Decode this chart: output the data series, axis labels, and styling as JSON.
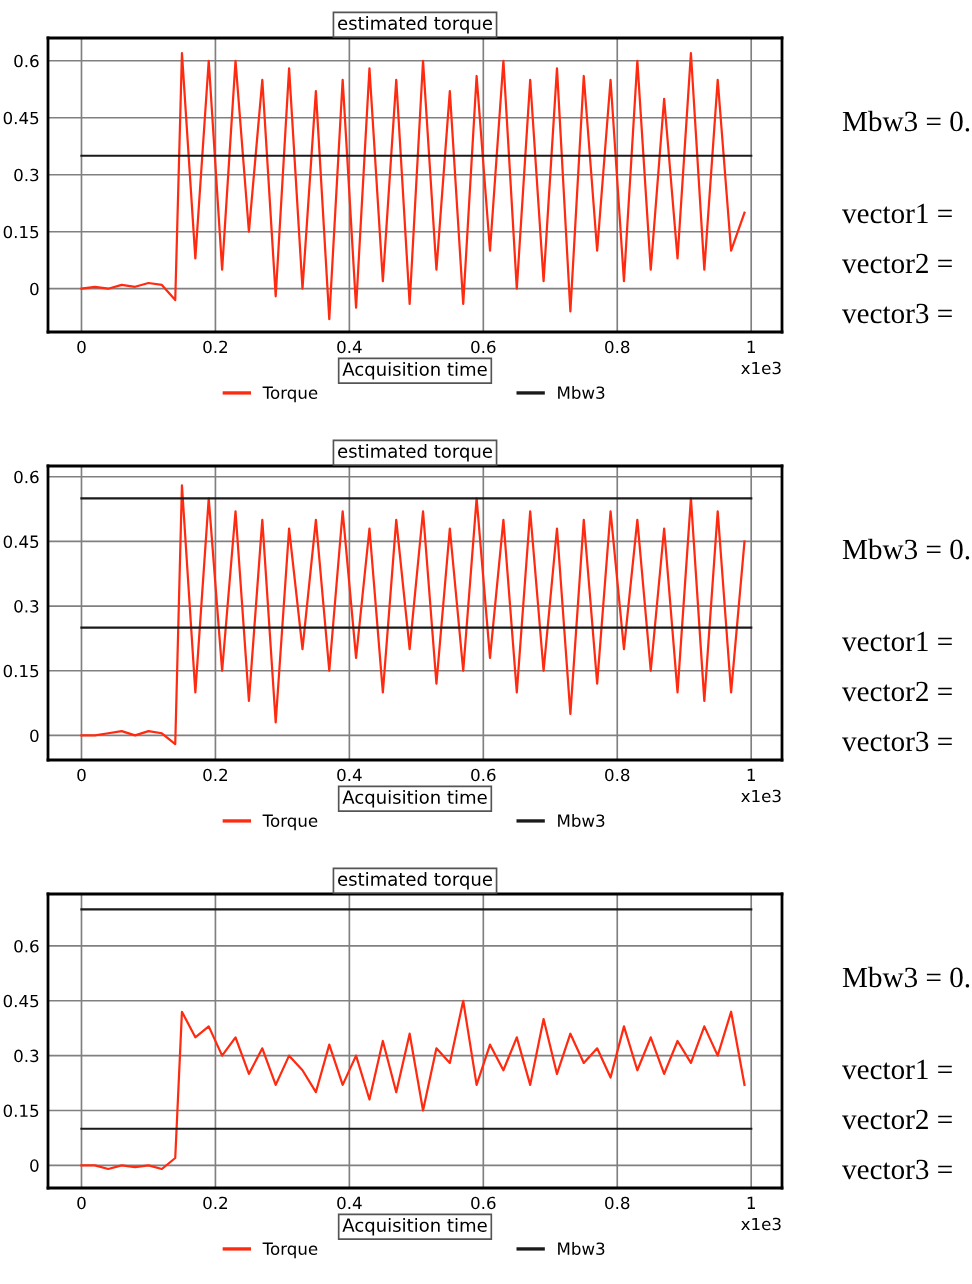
{
  "chart_data": [
    {
      "type": "line",
      "title": "estimated torque",
      "xlabel": "Acquisition time",
      "annotations": [
        "x1e3",
        "Mbw3 = 0.",
        "vector1 =",
        "vector2 =",
        "vector3 ="
      ],
      "xlim": [
        -0.05,
        1.046
      ],
      "ylim": [
        -0.114,
        0.66
      ],
      "xticks": [
        0,
        0.2,
        0.4,
        0.6,
        0.8,
        1
      ],
      "yticks": [
        0,
        0.15,
        0.3,
        0.45,
        0.6
      ],
      "grid": true,
      "legend": "bottom",
      "series": [
        {
          "name": "Torque",
          "color": "#ff2a10",
          "x": [
            0,
            0.02,
            0.04,
            0.06,
            0.08,
            0.1,
            0.12,
            0.14,
            0.15,
            0.17,
            0.19,
            0.21,
            0.23,
            0.25,
            0.27,
            0.29,
            0.31,
            0.33,
            0.35,
            0.37,
            0.39,
            0.41,
            0.43,
            0.45,
            0.47,
            0.49,
            0.51,
            0.53,
            0.55,
            0.57,
            0.59,
            0.61,
            0.63,
            0.65,
            0.67,
            0.69,
            0.71,
            0.73,
            0.75,
            0.77,
            0.79,
            0.81,
            0.83,
            0.85,
            0.87,
            0.89,
            0.91,
            0.93,
            0.95,
            0.97,
            0.99
          ],
          "values": [
            0.0,
            0.005,
            0.0,
            0.01,
            0.005,
            0.015,
            0.01,
            -0.03,
            0.62,
            0.08,
            0.6,
            0.05,
            0.6,
            0.15,
            0.55,
            -0.02,
            0.58,
            0.0,
            0.52,
            -0.08,
            0.55,
            -0.05,
            0.58,
            0.02,
            0.55,
            -0.04,
            0.6,
            0.05,
            0.52,
            -0.04,
            0.56,
            0.1,
            0.6,
            0.0,
            0.55,
            0.02,
            0.58,
            -0.06,
            0.56,
            0.1,
            0.55,
            0.02,
            0.6,
            0.05,
            0.5,
            0.08,
            0.62,
            0.05,
            0.55,
            0.1,
            0.2
          ]
        },
        {
          "name": "Mbw3",
          "color": "#1a1a1a",
          "x": [
            0,
            1
          ],
          "values": [
            0.35,
            0.35
          ]
        }
      ]
    },
    {
      "type": "line",
      "title": "estimated torque",
      "xlabel": "Acquisition time",
      "annotations": [
        "x1e3",
        "Mbw3 = 0.",
        "vector1 =",
        "vector2 =",
        "vector3 ="
      ],
      "xlim": [
        -0.05,
        1.046
      ],
      "ylim": [
        -0.057,
        0.625
      ],
      "xticks": [
        0,
        0.2,
        0.4,
        0.6,
        0.8,
        1
      ],
      "yticks": [
        0,
        0.15,
        0.3,
        0.45,
        0.6
      ],
      "grid": true,
      "legend": "bottom",
      "series": [
        {
          "name": "Torque",
          "color": "#ff2a10",
          "x": [
            0,
            0.02,
            0.04,
            0.06,
            0.08,
            0.1,
            0.12,
            0.14,
            0.15,
            0.17,
            0.19,
            0.21,
            0.23,
            0.25,
            0.27,
            0.29,
            0.31,
            0.33,
            0.35,
            0.37,
            0.39,
            0.41,
            0.43,
            0.45,
            0.47,
            0.49,
            0.51,
            0.53,
            0.55,
            0.57,
            0.59,
            0.61,
            0.63,
            0.65,
            0.67,
            0.69,
            0.71,
            0.73,
            0.75,
            0.77,
            0.79,
            0.81,
            0.83,
            0.85,
            0.87,
            0.89,
            0.91,
            0.93,
            0.95,
            0.97,
            0.99
          ],
          "values": [
            0.0,
            0.0,
            0.005,
            0.01,
            0.0,
            0.01,
            0.005,
            -0.02,
            0.58,
            0.1,
            0.55,
            0.15,
            0.52,
            0.08,
            0.5,
            0.03,
            0.48,
            0.2,
            0.5,
            0.15,
            0.52,
            0.18,
            0.48,
            0.1,
            0.5,
            0.2,
            0.52,
            0.12,
            0.48,
            0.15,
            0.55,
            0.18,
            0.5,
            0.1,
            0.52,
            0.15,
            0.48,
            0.05,
            0.5,
            0.12,
            0.52,
            0.2,
            0.5,
            0.15,
            0.48,
            0.1,
            0.55,
            0.08,
            0.52,
            0.1,
            0.45
          ]
        },
        {
          "name": "Mbw3",
          "color": "#1a1a1a",
          "x": [
            0,
            1
          ],
          "values": [
            0.25,
            0.25
          ]
        },
        {
          "color": "#1a1a1a",
          "x": [
            0,
            1
          ],
          "values": [
            0.55,
            0.55
          ]
        }
      ]
    },
    {
      "type": "line",
      "title": "estimated torque",
      "xlabel": "Acquisition time",
      "annotations": [
        "x1e3",
        "Mbw3 = 0.",
        "vector1 =",
        "vector2 =",
        "vector3 ="
      ],
      "xlim": [
        -0.05,
        1.046
      ],
      "ylim": [
        -0.062,
        0.742
      ],
      "xticks": [
        0,
        0.2,
        0.4,
        0.6,
        0.8,
        1
      ],
      "yticks": [
        0,
        0.15,
        0.3,
        0.45,
        0.6
      ],
      "grid": true,
      "legend": "bottom",
      "series": [
        {
          "name": "Torque",
          "color": "#ff2a10",
          "x": [
            0,
            0.02,
            0.04,
            0.06,
            0.08,
            0.1,
            0.12,
            0.14,
            0.15,
            0.17,
            0.19,
            0.21,
            0.23,
            0.25,
            0.27,
            0.29,
            0.31,
            0.33,
            0.35,
            0.37,
            0.39,
            0.41,
            0.43,
            0.45,
            0.47,
            0.49,
            0.51,
            0.53,
            0.55,
            0.57,
            0.59,
            0.61,
            0.63,
            0.65,
            0.67,
            0.69,
            0.71,
            0.73,
            0.75,
            0.77,
            0.79,
            0.81,
            0.83,
            0.85,
            0.87,
            0.89,
            0.91,
            0.93,
            0.95,
            0.97,
            0.99
          ],
          "values": [
            0.0,
            0.0,
            -0.01,
            0.0,
            -0.005,
            0.0,
            -0.01,
            0.02,
            0.42,
            0.35,
            0.38,
            0.3,
            0.35,
            0.25,
            0.32,
            0.22,
            0.3,
            0.26,
            0.2,
            0.33,
            0.22,
            0.3,
            0.18,
            0.34,
            0.2,
            0.36,
            0.15,
            0.32,
            0.28,
            0.45,
            0.22,
            0.33,
            0.26,
            0.35,
            0.22,
            0.4,
            0.25,
            0.36,
            0.28,
            0.32,
            0.24,
            0.38,
            0.26,
            0.35,
            0.25,
            0.34,
            0.28,
            0.38,
            0.3,
            0.42,
            0.22
          ]
        },
        {
          "name": "Mbw3",
          "color": "#1a1a1a",
          "x": [
            0,
            1
          ],
          "values": [
            0.1,
            0.1
          ]
        },
        {
          "color": "#1a1a1a",
          "x": [
            0,
            1
          ],
          "values": [
            0.7,
            0.7
          ]
        }
      ]
    }
  ]
}
